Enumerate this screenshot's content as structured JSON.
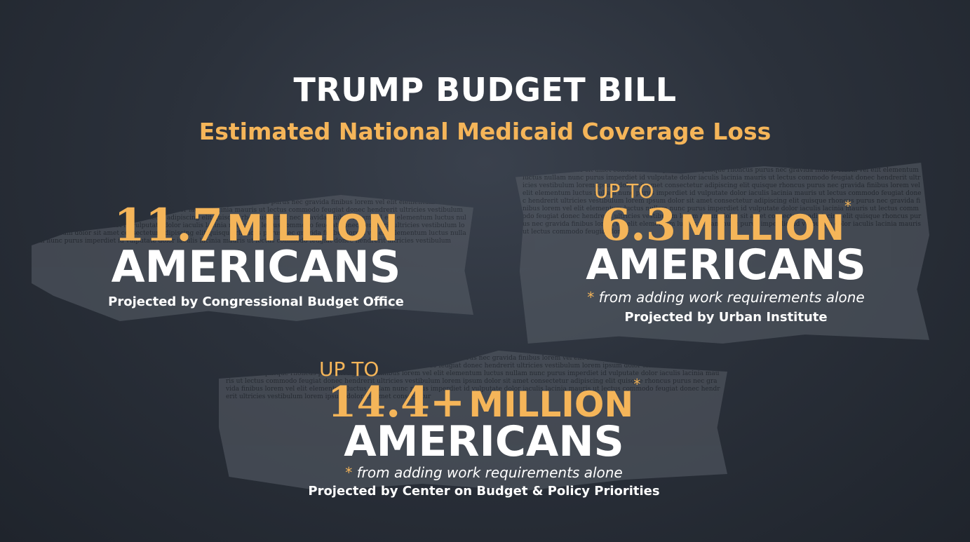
{
  "header": {
    "title": "TRUMP BUDGET BILL",
    "subtitle": "Estimated National Medicaid Coverage Loss"
  },
  "stats": [
    {
      "prefix": "",
      "number": "11.7",
      "unit": "MILLION",
      "label": "AMERICANS",
      "asterisk": "",
      "note_mark": "",
      "note": "",
      "source": "Projected by Congressional Budget Office"
    },
    {
      "prefix": "UP TO",
      "number": "6.3",
      "unit": "MILLION",
      "label": "AMERICANS",
      "asterisk": "*",
      "note_mark": "*",
      "note": "from adding work requirements alone",
      "source": "Projected by Urban Institute"
    },
    {
      "prefix": "UP TO",
      "number": "14.4+",
      "unit": "MILLION",
      "label": "AMERICANS",
      "asterisk": "*",
      "note_mark": "*",
      "note": "from adding work requirements alone",
      "source": "Projected by Center on Budget & Policy Priorities"
    }
  ],
  "colors": {
    "accent": "#f5b559",
    "text": "#ffffff",
    "background": "#2b313b"
  }
}
